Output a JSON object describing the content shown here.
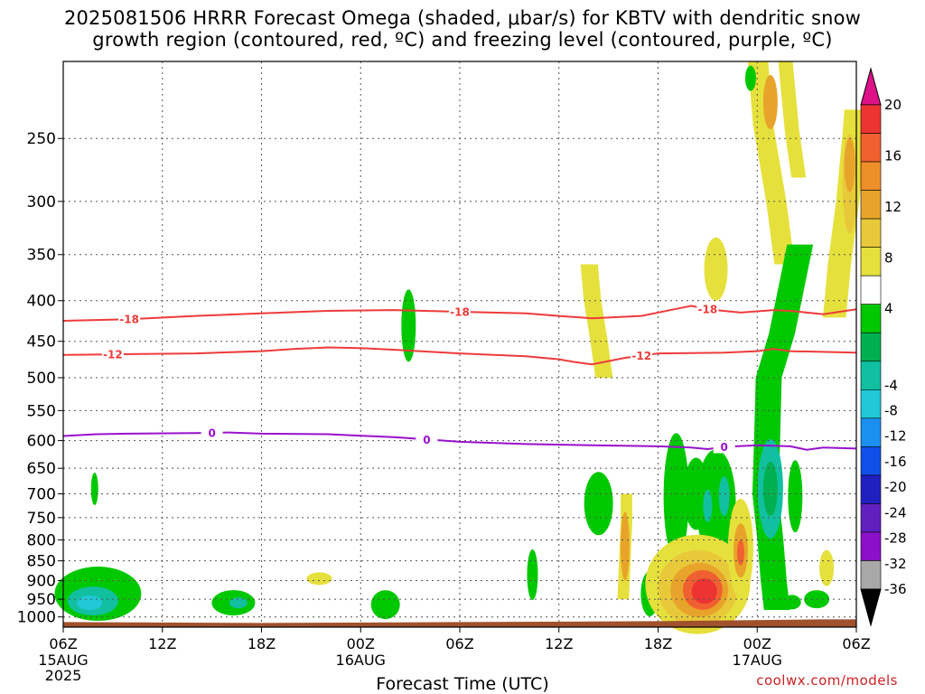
{
  "title": {
    "line1": "2025081506 HRRR Forecast Omega (shaded, μbar/s) for KBTV with dendritic snow",
    "line2": "growth region (contoured, red, ºC) and freezing level (contoured, purple, ºC)"
  },
  "credit": "coolwx.com/models",
  "chart_data": {
    "type": "heatmap",
    "title": "2025081506 HRRR Forecast Omega (shaded, μbar/s) for KBTV with dendritic snow growth region (contoured, red, ºC) and freezing level (contoured, purple, ºC)",
    "xlabel": "Forecast Time (UTC)",
    "ylabel": "",
    "x_range_hours": [
      0,
      48
    ],
    "x_ticks": [
      {
        "hour": 0,
        "label": "06Z",
        "sub": [
          "15AUG",
          "2025"
        ]
      },
      {
        "hour": 6,
        "label": "12Z",
        "sub": []
      },
      {
        "hour": 12,
        "label": "18Z",
        "sub": []
      },
      {
        "hour": 18,
        "label": "00Z",
        "sub": [
          "16AUG"
        ]
      },
      {
        "hour": 24,
        "label": "06Z",
        "sub": []
      },
      {
        "hour": 30,
        "label": "12Z",
        "sub": []
      },
      {
        "hour": 36,
        "label": "18Z",
        "sub": []
      },
      {
        "hour": 42,
        "label": "00Z",
        "sub": [
          "17AUG"
        ]
      },
      {
        "hour": 48,
        "label": "06Z",
        "sub": []
      }
    ],
    "y_axis": "pressure (hPa), reversed log scale",
    "y_range": [
      1030,
      200
    ],
    "y_ticks": [
      250,
      300,
      350,
      400,
      450,
      500,
      550,
      600,
      650,
      700,
      750,
      800,
      850,
      900,
      950,
      1000
    ],
    "grid": true,
    "colorbar": {
      "labels": [
        20,
        16,
        12,
        8,
        4,
        -4,
        -8,
        -12,
        -16,
        -20,
        -24,
        -28,
        -32,
        -36
      ],
      "colors": [
        "#dd1188",
        "#ee3333",
        "#f06030",
        "#ee8f2a",
        "#e8a42a",
        "#e8c93a",
        "#e6e03c",
        "#ffffff",
        "#00c800",
        "#00b050",
        "#10c0a0",
        "#20c8d8",
        "#1a90f0",
        "#1050e8",
        "#2020c0",
        "#6020c0",
        "#8c10c8",
        "#a8a8a8",
        "#000000"
      ]
    },
    "contours": [
      {
        "name": "-18",
        "color": "#ee3b3b",
        "points": [
          [
            0,
            424
          ],
          [
            4,
            422
          ],
          [
            8,
            418
          ],
          [
            12,
            415
          ],
          [
            16,
            412
          ],
          [
            20,
            411
          ],
          [
            24,
            413
          ],
          [
            28,
            415
          ],
          [
            30,
            418
          ],
          [
            32,
            421
          ],
          [
            35,
            418
          ],
          [
            37,
            410
          ],
          [
            38,
            406
          ],
          [
            39,
            410
          ],
          [
            41,
            414
          ],
          [
            43,
            411
          ],
          [
            44,
            412
          ],
          [
            46,
            416
          ],
          [
            48,
            410
          ]
        ]
      },
      {
        "name": "-12",
        "color": "#ee3b3b",
        "points": [
          [
            0,
            468
          ],
          [
            4,
            467
          ],
          [
            8,
            466
          ],
          [
            12,
            463
          ],
          [
            14,
            460
          ],
          [
            16,
            458
          ],
          [
            18,
            459
          ],
          [
            20,
            461
          ],
          [
            24,
            466
          ],
          [
            28,
            470
          ],
          [
            30,
            474
          ],
          [
            31,
            478
          ],
          [
            32,
            481
          ],
          [
            34,
            472
          ],
          [
            36,
            466
          ],
          [
            40,
            465
          ],
          [
            42,
            463
          ],
          [
            43,
            460
          ],
          [
            44,
            463
          ],
          [
            48,
            465
          ]
        ]
      },
      {
        "name": "0",
        "color": "#9911cc",
        "points": [
          [
            0,
            592
          ],
          [
            2,
            589
          ],
          [
            4,
            588
          ],
          [
            8,
            587
          ],
          [
            10,
            586
          ],
          [
            12,
            588
          ],
          [
            16,
            589
          ],
          [
            20,
            594
          ],
          [
            22,
            598
          ],
          [
            24,
            602
          ],
          [
            28,
            606
          ],
          [
            32,
            608
          ],
          [
            36,
            610
          ],
          [
            38,
            612
          ],
          [
            39,
            615
          ],
          [
            40,
            611
          ],
          [
            42,
            608
          ],
          [
            44,
            610
          ],
          [
            45,
            616
          ],
          [
            46,
            612
          ],
          [
            48,
            614
          ]
        ]
      }
    ],
    "omega_regions": [
      {
        "category": "4 to 8",
        "hours": [
          46,
          48
        ],
        "pressure": [
          230,
          420
        ]
      },
      {
        "category": "4 to 8",
        "hours": [
          43,
          46
        ],
        "pressure": [
          200,
          360
        ]
      },
      {
        "category": "8 to 12",
        "hours": [
          47,
          48
        ],
        "pressure": [
          230,
          330
        ]
      },
      {
        "category": "4 to 8",
        "hours": [
          32,
          34
        ],
        "pressure": [
          355,
          500
        ]
      },
      {
        "category": "4 to 8",
        "hours": [
          38,
          41
        ],
        "pressure": [
          335,
          395
        ]
      },
      {
        "category": "-4 to -8",
        "hours": [
          21,
          22
        ],
        "pressure": [
          385,
          470
        ]
      },
      {
        "category": "-4 to -8",
        "hours": [
          41,
          44
        ],
        "pressure": [
          340,
          970
        ]
      },
      {
        "category": "-8 to -12",
        "hours": [
          42,
          43
        ],
        "pressure": [
          655,
          740
        ]
      },
      {
        "category": "-4 to -8",
        "hours": [
          36,
          38
        ],
        "pressure": [
          640,
          820
        ]
      },
      {
        "category": "-4 to -8",
        "hours": [
          38,
          40
        ],
        "pressure": [
          680,
          790
        ]
      },
      {
        "category": "-4 to -8",
        "hours": [
          44,
          45
        ],
        "pressure": [
          660,
          750
        ]
      },
      {
        "category": "-4 to -8",
        "hours": [
          33,
          35
        ],
        "pressure": [
          660,
          790
        ]
      },
      {
        "category": "4 to 12",
        "hours": [
          34,
          35
        ],
        "pressure": [
          690,
          900
        ]
      },
      {
        "category": "4 to 20",
        "hours": [
          35,
          40
        ],
        "pressure": [
          820,
          980
        ]
      },
      {
        "category": "4 to 16",
        "hours": [
          40,
          42
        ],
        "pressure": [
          725,
          950
        ]
      },
      {
        "category": "-4 to -12",
        "hours": [
          0,
          4
        ],
        "pressure": [
          870,
          1010
        ]
      },
      {
        "category": "-4 to -12",
        "hours": [
          9,
          12
        ],
        "pressure": [
          930,
          1000
        ]
      },
      {
        "category": "-4 to -8",
        "hours": [
          19,
          21
        ],
        "pressure": [
          930,
          1010
        ]
      },
      {
        "category": "-4 to -8",
        "hours": [
          1,
          2
        ],
        "pressure": [
          660,
          720
        ]
      },
      {
        "category": "-4 to -8",
        "hours": [
          28,
          29
        ],
        "pressure": [
          850,
          920
        ]
      },
      {
        "category": "4 to 8",
        "hours": [
          15,
          17
        ],
        "pressure": [
          870,
          920
        ]
      },
      {
        "category": "4 to 8",
        "hours": [
          46,
          47
        ],
        "pressure": [
          830,
          900
        ]
      },
      {
        "category": "-4 to -8",
        "hours": [
          44,
          46
        ],
        "pressure": [
          920,
          960
        ]
      }
    ],
    "surface": {
      "color": "#a0522d",
      "pressure": 1015
    }
  }
}
